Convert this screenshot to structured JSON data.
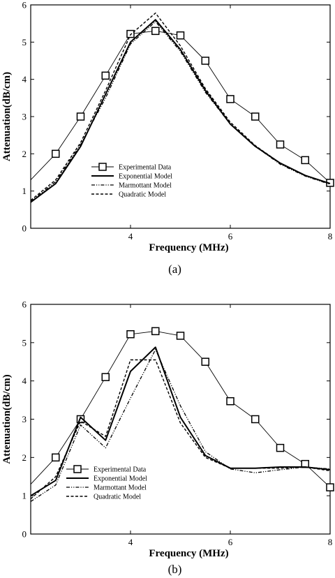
{
  "colors": {
    "ink": "#000000",
    "background": "#ffffff"
  },
  "chart_data": [
    {
      "type": "line",
      "panel_label": "(a)",
      "xlabel": "Frequency (MHz)",
      "ylabel": "Attenuation(dB/cm)",
      "xlim": [
        2,
        8
      ],
      "ylim": [
        0,
        6
      ],
      "x_ticks": [
        4,
        6,
        8
      ],
      "y_ticks": [
        0,
        1,
        2,
        3,
        4,
        5,
        6
      ],
      "legend_placement": "lower-center",
      "series": [
        {
          "name": "Experimental Data",
          "style": "thin-solid-square-markers",
          "x": [
            2,
            2.5,
            3,
            3.5,
            4,
            4.5,
            5,
            5.5,
            6,
            6.5,
            7,
            7.5,
            8
          ],
          "y": [
            1.3,
            2.0,
            3.0,
            4.1,
            5.22,
            5.3,
            5.18,
            4.5,
            3.47,
            3.0,
            2.25,
            1.83,
            1.22
          ]
        },
        {
          "name": "Exponential Model",
          "style": "thick-solid",
          "x": [
            2,
            2.5,
            3,
            3.5,
            4,
            4.5,
            5,
            5.5,
            6,
            6.5,
            7,
            7.5,
            8
          ],
          "y": [
            0.7,
            1.2,
            2.2,
            3.6,
            5.0,
            5.6,
            4.8,
            3.7,
            2.8,
            2.2,
            1.75,
            1.42,
            1.2
          ]
        },
        {
          "name": "Marmottant Model",
          "style": "dash-dot-dot",
          "x": [
            2,
            2.5,
            3,
            3.5,
            4,
            4.5,
            5,
            5.5,
            6,
            6.5,
            7,
            7.5,
            8
          ],
          "y": [
            0.72,
            1.25,
            2.25,
            3.5,
            4.95,
            5.55,
            4.75,
            3.65,
            2.8,
            2.2,
            1.72,
            1.4,
            1.18
          ]
        },
        {
          "name": "Quadratic Model",
          "style": "dashed",
          "x": [
            2,
            2.5,
            3,
            3.5,
            4,
            4.5,
            5,
            5.5,
            6,
            6.5,
            7,
            7.5,
            8
          ],
          "y": [
            0.75,
            1.3,
            2.3,
            3.7,
            5.2,
            5.78,
            4.9,
            3.75,
            2.85,
            2.22,
            1.75,
            1.42,
            1.2
          ]
        }
      ]
    },
    {
      "type": "line",
      "panel_label": "(b)",
      "xlabel": "Frequency (MHz)",
      "ylabel": "Attenuation(dB/cm)",
      "xlim": [
        2,
        8
      ],
      "ylim": [
        0,
        6
      ],
      "x_ticks": [
        4,
        6,
        8
      ],
      "y_ticks": [
        0,
        1,
        2,
        3,
        4,
        5,
        6
      ],
      "legend_placement": "lower-center",
      "series": [
        {
          "name": "Experimental Data",
          "style": "thin-solid-square-markers",
          "x": [
            2,
            2.5,
            3,
            3.5,
            4,
            4.5,
            5,
            5.5,
            6,
            6.5,
            7,
            7.5,
            8
          ],
          "y": [
            1.3,
            2.0,
            3.0,
            4.1,
            5.22,
            5.3,
            5.18,
            4.5,
            3.47,
            3.0,
            2.25,
            1.83,
            1.22
          ]
        },
        {
          "name": "Exponential Model",
          "style": "thick-solid",
          "x": [
            2,
            2.5,
            3,
            3.5,
            4,
            4.5,
            5,
            5.5,
            6,
            6.5,
            7,
            7.5,
            8
          ],
          "y": [
            1.0,
            1.4,
            3.05,
            2.45,
            4.25,
            4.88,
            3.05,
            2.05,
            1.72,
            1.72,
            1.75,
            1.75,
            1.68
          ]
        },
        {
          "name": "Marmottant Model",
          "style": "dash-dot-dot",
          "x": [
            2,
            2.5,
            3,
            3.5,
            4,
            4.5,
            5,
            5.5,
            6,
            6.5,
            7,
            7.5,
            8
          ],
          "y": [
            0.85,
            1.28,
            2.85,
            2.25,
            3.55,
            4.82,
            3.35,
            2.15,
            1.7,
            1.6,
            1.68,
            1.75,
            1.7
          ]
        },
        {
          "name": "Quadratic Model",
          "style": "dashed",
          "x": [
            2,
            2.5,
            3,
            3.5,
            4,
            4.5,
            5,
            5.5,
            6,
            6.5,
            7,
            7.5,
            8
          ],
          "y": [
            0.92,
            1.5,
            2.95,
            2.55,
            4.55,
            4.55,
            2.9,
            2.0,
            1.72,
            1.72,
            1.72,
            1.75,
            1.65
          ]
        }
      ]
    }
  ]
}
